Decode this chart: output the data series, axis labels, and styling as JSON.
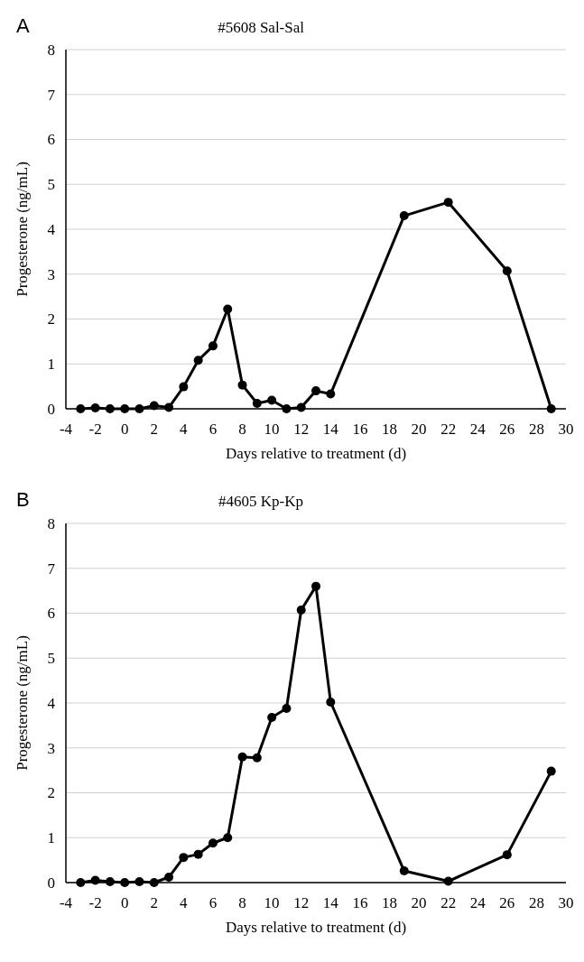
{
  "chart_data": [
    {
      "type": "line",
      "title": "#5608 Sal-Sal",
      "xlabel": "Days relative to treatment (d)",
      "ylabel": "Progesterone (ng/mL)",
      "annotations": [
        "A"
      ],
      "x": [
        -3,
        -2,
        -1,
        0,
        1,
        2,
        3,
        4,
        5,
        6,
        7,
        8,
        9,
        10,
        11,
        12,
        13,
        14,
        19,
        22,
        26,
        29
      ],
      "series": [
        {
          "color": "#000000",
          "values": [
            0,
            0.02,
            0,
            0,
            0,
            0.07,
            0.03,
            0.49,
            1.08,
            1.4,
            2.22,
            0.53,
            0.12,
            0.19,
            0,
            0.03,
            0.4,
            0.33,
            4.3,
            4.6,
            3.07,
            0
          ]
        }
      ],
      "xlim": [
        -4,
        30
      ],
      "xticks": [
        -4,
        -2,
        0,
        2,
        4,
        6,
        8,
        10,
        12,
        14,
        16,
        18,
        20,
        22,
        24,
        26,
        28,
        30
      ],
      "ylim": [
        0,
        8
      ],
      "yticks": [
        0,
        1,
        2,
        3,
        4,
        5,
        6,
        7,
        8
      ],
      "grid": "y",
      "marker": "circle",
      "line_style": "solid"
    },
    {
      "type": "line",
      "title": "#4605 Kp-Kp",
      "xlabel": "Days relative to treatment (d)",
      "ylabel": "Progesterone (ng/mL)",
      "annotations": [
        "B"
      ],
      "x": [
        -3,
        -2,
        -1,
        0,
        1,
        2,
        3,
        4,
        5,
        6,
        7,
        8,
        9,
        10,
        11,
        12,
        13,
        14,
        19,
        22,
        26,
        29
      ],
      "series": [
        {
          "color": "#000000",
          "values": [
            0,
            0.05,
            0.02,
            0,
            0.02,
            0,
            0.12,
            0.56,
            0.63,
            0.88,
            1.0,
            2.8,
            2.78,
            3.68,
            3.88,
            6.07,
            6.6,
            4.02,
            0.26,
            0.03,
            0.62,
            2.48
          ]
        }
      ],
      "xlim": [
        -4,
        30
      ],
      "xticks": [
        -4,
        -2,
        0,
        2,
        4,
        6,
        8,
        10,
        12,
        14,
        16,
        18,
        20,
        22,
        24,
        26,
        28,
        30
      ],
      "ylim": [
        0,
        8
      ],
      "yticks": [
        0,
        1,
        2,
        3,
        4,
        5,
        6,
        7,
        8
      ],
      "grid": "y",
      "marker": "circle",
      "line_style": "solid"
    }
  ]
}
